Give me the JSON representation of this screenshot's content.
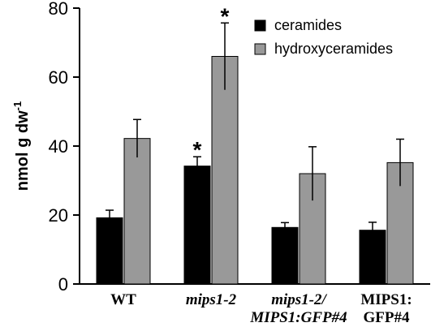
{
  "chart_data": {
    "type": "bar",
    "categories": [
      {
        "lines": [
          "WT"
        ],
        "italic": false
      },
      {
        "lines": [
          "mips1-2"
        ],
        "italic": true
      },
      {
        "lines": [
          "mips1-2/",
          "MIPS1:GFP#4"
        ],
        "italic": true
      },
      {
        "lines": [
          "MIPS1:",
          "GFP#4"
        ],
        "italic": false
      }
    ],
    "series": [
      {
        "name": "ceramides",
        "color": "#000000",
        "values": [
          19.2,
          34.2,
          16.4,
          15.6
        ],
        "errors": [
          2.2,
          2.7,
          1.4,
          2.3
        ],
        "significance": [
          "",
          "*",
          "",
          ""
        ]
      },
      {
        "name": "hydroxyceramides",
        "color": "#999999",
        "values": [
          42.2,
          66.0,
          32.0,
          35.2
        ],
        "errors": [
          5.5,
          9.7,
          7.8,
          6.8
        ],
        "significance": [
          "",
          "*",
          "",
          ""
        ]
      }
    ],
    "ylabel": "nmol g dw",
    "ylabel_superscript": "-1",
    "ylim": [
      0,
      80
    ],
    "yticks": [
      "0",
      "20",
      "40",
      "60",
      "80"
    ],
    "ytick_values": [
      0,
      20,
      40,
      60,
      80
    ],
    "legend_position": "top-right",
    "grid": false
  }
}
